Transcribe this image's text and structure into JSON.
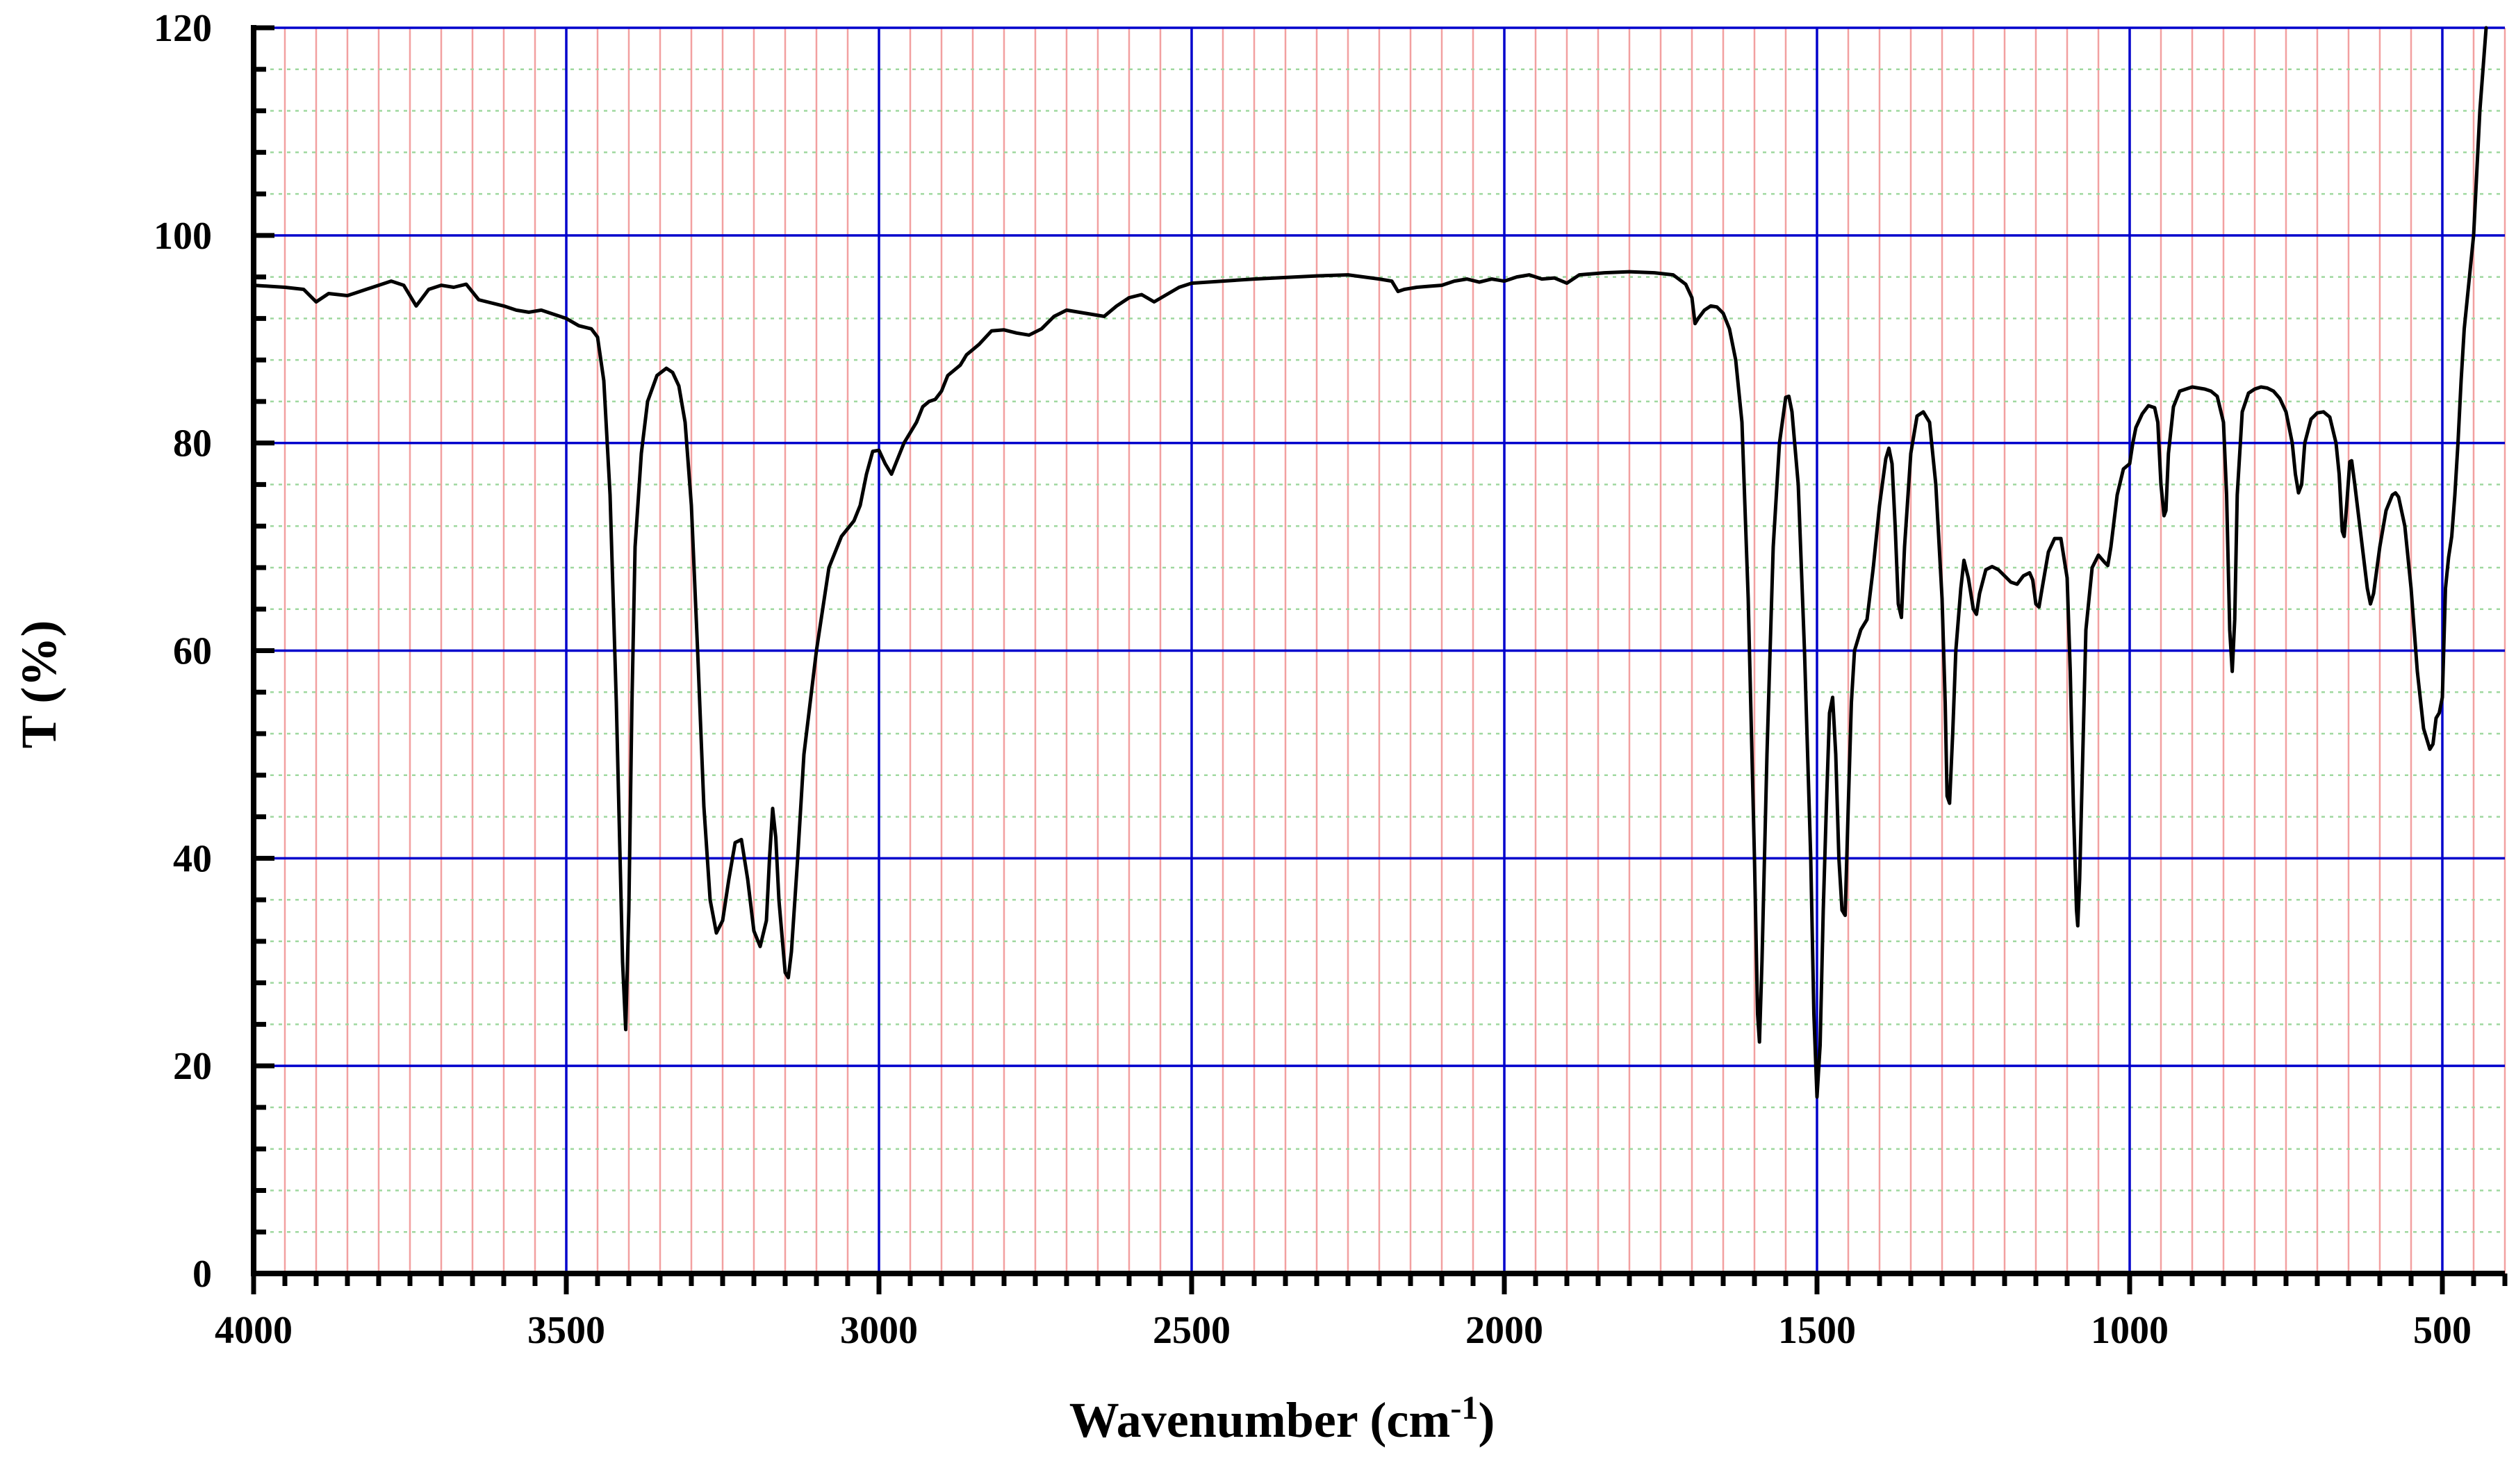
{
  "chart_data": {
    "type": "line",
    "xlabel": "Wavenumber (cm",
    "xlabel_sup": "-1",
    "xlabel_end": ")",
    "ylabel": "T (%)",
    "xlim": [
      4000,
      400
    ],
    "ylim": [
      0,
      120
    ],
    "x_ticks": [
      4000,
      3500,
      3000,
      2500,
      2000,
      1500,
      1000,
      500
    ],
    "x_tick_labels": [
      "4000",
      "3500",
      "3000",
      "2500",
      "2000",
      "1500",
      "1000",
      "500"
    ],
    "y_ticks": [
      0,
      20,
      40,
      60,
      80,
      100,
      120
    ],
    "y_tick_labels": [
      "0",
      "20",
      "40",
      "60",
      "80",
      "100",
      "120"
    ],
    "grid": "on",
    "colors": {
      "major_grid": "#0000cc",
      "minor_grid_x": "#f2a0a0",
      "minor_grid_y": "#9fd89f",
      "line": "#000000"
    },
    "series": [
      {
        "points": [
          [
            4000,
            95.2
          ],
          [
            3950,
            95.0
          ],
          [
            3920,
            94.8
          ],
          [
            3900,
            93.6
          ],
          [
            3880,
            94.4
          ],
          [
            3850,
            94.2
          ],
          [
            3820,
            94.8
          ],
          [
            3800,
            95.2
          ],
          [
            3780,
            95.6
          ],
          [
            3760,
            95.2
          ],
          [
            3740,
            93.2
          ],
          [
            3720,
            94.8
          ],
          [
            3700,
            95.2
          ],
          [
            3680,
            95.0
          ],
          [
            3660,
            95.3
          ],
          [
            3640,
            93.8
          ],
          [
            3600,
            93.2
          ],
          [
            3580,
            92.8
          ],
          [
            3560,
            92.6
          ],
          [
            3540,
            92.8
          ],
          [
            3520,
            92.4
          ],
          [
            3500,
            92.0
          ],
          [
            3480,
            91.3
          ],
          [
            3460,
            91.0
          ],
          [
            3450,
            90.2
          ],
          [
            3440,
            86
          ],
          [
            3430,
            75
          ],
          [
            3420,
            55
          ],
          [
            3410,
            30
          ],
          [
            3405,
            23.5
          ],
          [
            3400,
            35
          ],
          [
            3395,
            55
          ],
          [
            3390,
            70
          ],
          [
            3380,
            79
          ],
          [
            3370,
            84
          ],
          [
            3355,
            86.5
          ],
          [
            3340,
            87.2
          ],
          [
            3330,
            86.8
          ],
          [
            3320,
            85.5
          ],
          [
            3310,
            82
          ],
          [
            3300,
            74
          ],
          [
            3290,
            60
          ],
          [
            3280,
            45
          ],
          [
            3270,
            36
          ],
          [
            3260,
            32.8
          ],
          [
            3250,
            34
          ],
          [
            3240,
            38
          ],
          [
            3230,
            41.5
          ],
          [
            3220,
            41.8
          ],
          [
            3210,
            38
          ],
          [
            3200,
            33
          ],
          [
            3190,
            31.5
          ],
          [
            3180,
            34
          ],
          [
            3175,
            40
          ],
          [
            3170,
            44.8
          ],
          [
            3165,
            42
          ],
          [
            3160,
            36
          ],
          [
            3150,
            29
          ],
          [
            3145,
            28.5
          ],
          [
            3140,
            31
          ],
          [
            3130,
            40
          ],
          [
            3120,
            50
          ],
          [
            3100,
            60
          ],
          [
            3080,
            68
          ],
          [
            3060,
            71
          ],
          [
            3040,
            72.5
          ],
          [
            3030,
            74
          ],
          [
            3020,
            77
          ],
          [
            3010,
            79.2
          ],
          [
            3000,
            79.3
          ],
          [
            2990,
            78
          ],
          [
            2980,
            77
          ],
          [
            2970,
            78.5
          ],
          [
            2960,
            80
          ],
          [
            2940,
            82
          ],
          [
            2930,
            83.5
          ],
          [
            2920,
            84
          ],
          [
            2910,
            84.2
          ],
          [
            2900,
            85
          ],
          [
            2890,
            86.5
          ],
          [
            2870,
            87.5
          ],
          [
            2860,
            88.5
          ],
          [
            2840,
            89.5
          ],
          [
            2820,
            90.8
          ],
          [
            2800,
            90.9
          ],
          [
            2780,
            90.6
          ],
          [
            2760,
            90.4
          ],
          [
            2740,
            91
          ],
          [
            2720,
            92.2
          ],
          [
            2700,
            92.8
          ],
          [
            2680,
            92.6
          ],
          [
            2660,
            92.4
          ],
          [
            2640,
            92.2
          ],
          [
            2620,
            93.2
          ],
          [
            2600,
            94
          ],
          [
            2580,
            94.3
          ],
          [
            2560,
            93.6
          ],
          [
            2540,
            94.3
          ],
          [
            2520,
            95
          ],
          [
            2500,
            95.4
          ],
          [
            2400,
            95.8
          ],
          [
            2300,
            96.1
          ],
          [
            2250,
            96.2
          ],
          [
            2200,
            95.8
          ],
          [
            2180,
            95.6
          ],
          [
            2170,
            94.6
          ],
          [
            2160,
            94.8
          ],
          [
            2140,
            95.0
          ],
          [
            2120,
            95.1
          ],
          [
            2100,
            95.2
          ],
          [
            2080,
            95.6
          ],
          [
            2060,
            95.8
          ],
          [
            2040,
            95.5
          ],
          [
            2020,
            95.8
          ],
          [
            2000,
            95.6
          ],
          [
            1980,
            96.0
          ],
          [
            1960,
            96.2
          ],
          [
            1940,
            95.8
          ],
          [
            1920,
            95.9
          ],
          [
            1900,
            95.4
          ],
          [
            1880,
            96.2
          ],
          [
            1860,
            96.3
          ],
          [
            1840,
            96.4
          ],
          [
            1800,
            96.5
          ],
          [
            1760,
            96.4
          ],
          [
            1730,
            96.2
          ],
          [
            1710,
            95.3
          ],
          [
            1700,
            94
          ],
          [
            1695,
            91.5
          ],
          [
            1690,
            92
          ],
          [
            1680,
            92.8
          ],
          [
            1670,
            93.2
          ],
          [
            1660,
            93.1
          ],
          [
            1650,
            92.5
          ],
          [
            1640,
            91
          ],
          [
            1630,
            88
          ],
          [
            1620,
            82
          ],
          [
            1610,
            65
          ],
          [
            1600,
            40
          ],
          [
            1595,
            25
          ],
          [
            1592,
            22.3
          ],
          [
            1588,
            30
          ],
          [
            1580,
            50
          ],
          [
            1570,
            70
          ],
          [
            1560,
            80
          ],
          [
            1550,
            84.4
          ],
          [
            1545,
            84.5
          ],
          [
            1540,
            83
          ],
          [
            1530,
            76
          ],
          [
            1520,
            60
          ],
          [
            1510,
            40
          ],
          [
            1505,
            25
          ],
          [
            1500,
            17
          ],
          [
            1495,
            22
          ],
          [
            1490,
            35
          ],
          [
            1485,
            45
          ],
          [
            1480,
            54
          ],
          [
            1475,
            55.5
          ],
          [
            1470,
            50
          ],
          [
            1465,
            40
          ],
          [
            1460,
            35
          ],
          [
            1455,
            34.5
          ],
          [
            1450,
            45
          ],
          [
            1445,
            55
          ],
          [
            1440,
            60
          ],
          [
            1430,
            62
          ],
          [
            1420,
            63
          ],
          [
            1410,
            68
          ],
          [
            1400,
            74
          ],
          [
            1390,
            78.5
          ],
          [
            1385,
            79.5
          ],
          [
            1380,
            78
          ],
          [
            1375,
            72
          ],
          [
            1370,
            64.5
          ],
          [
            1365,
            63.2
          ],
          [
            1360,
            70
          ],
          [
            1350,
            79
          ],
          [
            1340,
            82.6
          ],
          [
            1330,
            83
          ],
          [
            1320,
            82
          ],
          [
            1310,
            76
          ],
          [
            1300,
            65
          ],
          [
            1295,
            55
          ],
          [
            1292,
            46
          ],
          [
            1288,
            45.3
          ],
          [
            1283,
            52
          ],
          [
            1278,
            60
          ],
          [
            1270,
            66
          ],
          [
            1265,
            68.7
          ],
          [
            1258,
            67
          ],
          [
            1250,
            64
          ],
          [
            1245,
            63.5
          ],
          [
            1240,
            65.5
          ],
          [
            1230,
            67.8
          ],
          [
            1220,
            68.1
          ],
          [
            1210,
            67.8
          ],
          [
            1200,
            67.2
          ],
          [
            1190,
            66.6
          ],
          [
            1180,
            66.4
          ],
          [
            1170,
            67.2
          ],
          [
            1160,
            67.5
          ],
          [
            1155,
            66.8
          ],
          [
            1150,
            64.5
          ],
          [
            1145,
            64.2
          ],
          [
            1140,
            66
          ],
          [
            1130,
            69.5
          ],
          [
            1120,
            70.8
          ],
          [
            1110,
            70.8
          ],
          [
            1100,
            67
          ],
          [
            1095,
            58
          ],
          [
            1090,
            45
          ],
          [
            1085,
            35
          ],
          [
            1083,
            33.5
          ],
          [
            1080,
            38
          ],
          [
            1075,
            50
          ],
          [
            1070,
            62
          ],
          [
            1060,
            68
          ],
          [
            1050,
            69.2
          ],
          [
            1040,
            68.5
          ],
          [
            1035,
            68.2
          ],
          [
            1030,
            70
          ],
          [
            1020,
            75
          ],
          [
            1010,
            77.5
          ],
          [
            1000,
            78
          ],
          [
            995,
            80
          ],
          [
            990,
            81.5
          ],
          [
            980,
            82.8
          ],
          [
            970,
            83.6
          ],
          [
            960,
            83.4
          ],
          [
            955,
            82
          ],
          [
            950,
            76
          ],
          [
            945,
            73
          ],
          [
            942,
            73.5
          ],
          [
            938,
            79
          ],
          [
            930,
            83.5
          ],
          [
            920,
            85
          ],
          [
            900,
            85.4
          ],
          [
            880,
            85.2
          ],
          [
            870,
            85
          ],
          [
            860,
            84.5
          ],
          [
            850,
            82
          ],
          [
            845,
            75
          ],
          [
            840,
            62
          ],
          [
            836,
            58
          ],
          [
            832,
            63
          ],
          [
            828,
            75
          ],
          [
            820,
            83
          ],
          [
            810,
            84.8
          ],
          [
            800,
            85.2
          ],
          [
            790,
            85.4
          ],
          [
            780,
            85.3
          ],
          [
            770,
            85
          ],
          [
            760,
            84.3
          ],
          [
            750,
            83
          ],
          [
            740,
            80
          ],
          [
            735,
            77
          ],
          [
            730,
            75.2
          ],
          [
            725,
            76
          ],
          [
            720,
            80
          ],
          [
            710,
            82.3
          ],
          [
            700,
            82.9
          ],
          [
            690,
            83
          ],
          [
            680,
            82.5
          ],
          [
            670,
            80
          ],
          [
            665,
            77
          ],
          [
            660,
            71.5
          ],
          [
            657,
            71
          ],
          [
            653,
            74
          ],
          [
            648,
            78.2
          ],
          [
            645,
            78.3
          ],
          [
            640,
            76
          ],
          [
            635,
            73.5
          ],
          [
            630,
            71
          ],
          [
            620,
            66
          ],
          [
            615,
            64.5
          ],
          [
            610,
            65.5
          ],
          [
            600,
            70
          ],
          [
            590,
            73.5
          ],
          [
            580,
            75
          ],
          [
            575,
            75.2
          ],
          [
            570,
            74.8
          ],
          [
            560,
            72
          ],
          [
            550,
            66
          ],
          [
            540,
            58
          ],
          [
            530,
            52.5
          ],
          [
            520,
            50.5
          ],
          [
            515,
            51
          ],
          [
            510,
            53.5
          ],
          [
            505,
            54
          ],
          [
            500,
            55.5
          ],
          [
            495,
            66
          ],
          [
            490,
            69
          ],
          [
            485,
            71
          ],
          [
            480,
            75
          ],
          [
            475,
            80
          ],
          [
            470,
            86
          ],
          [
            465,
            91
          ],
          [
            460,
            94
          ],
          [
            450,
            100
          ],
          [
            445,
            106
          ],
          [
            440,
            112
          ],
          [
            435,
            116
          ],
          [
            430,
            120
          ]
        ]
      }
    ]
  }
}
